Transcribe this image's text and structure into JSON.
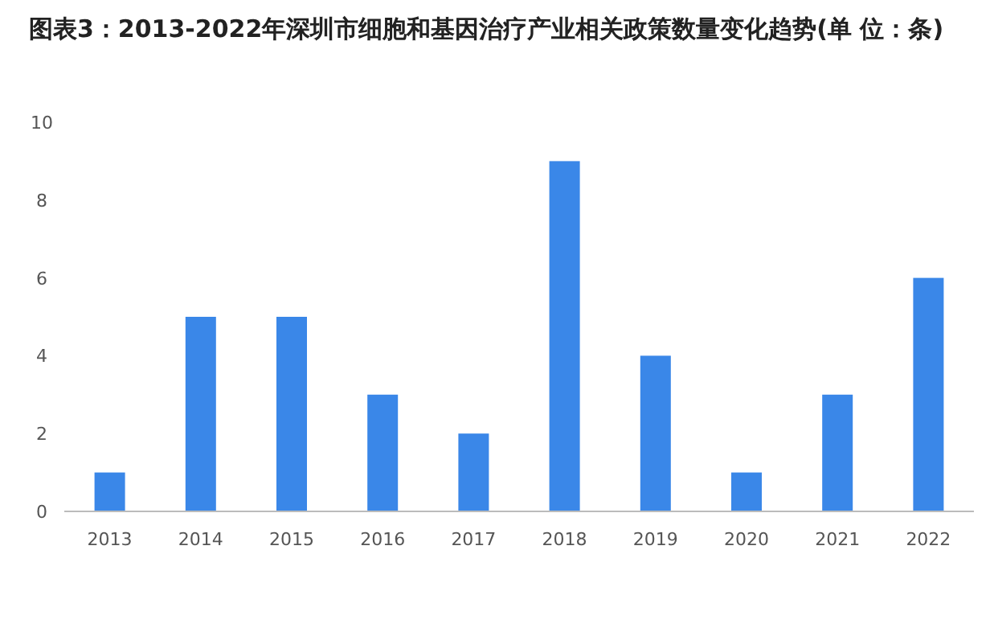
{
  "chart_data": {
    "type": "bar",
    "title": "图表3：2013-2022年深圳市细胞和基因治疗产业相关政策数量变化趋势(单 位：条)",
    "categories": [
      "2013",
      "2014",
      "2015",
      "2016",
      "2017",
      "2018",
      "2019",
      "2020",
      "2021",
      "2022"
    ],
    "values": [
      1,
      5,
      5,
      3,
      2,
      9,
      4,
      1,
      3,
      6
    ],
    "color": "#3a87e8",
    "ylim": [
      0,
      10
    ],
    "yticks": [
      0,
      2,
      4,
      6,
      8,
      10
    ]
  }
}
